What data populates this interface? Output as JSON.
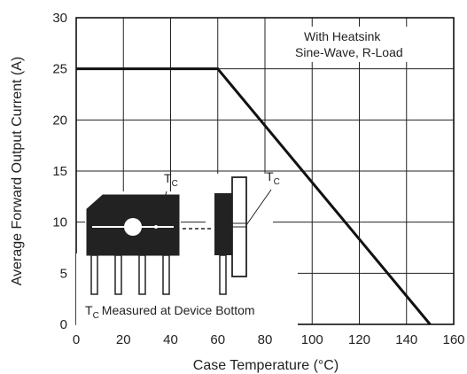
{
  "chart_data": {
    "type": "line",
    "xlabel": "Case Temperature (°C)",
    "ylabel": "Average Forward Output Current (A)",
    "xlim": [
      0,
      160
    ],
    "ylim": [
      0,
      30
    ],
    "xticks": [
      0,
      20,
      40,
      60,
      80,
      100,
      120,
      140,
      160
    ],
    "yticks": [
      0,
      5,
      10,
      15,
      20,
      25,
      30
    ],
    "grid": true,
    "series": [
      {
        "x": [
          0,
          60,
          150
        ],
        "y": [
          25,
          25,
          0
        ]
      }
    ],
    "annotations": {
      "condition_line1": "With Heatsink",
      "condition_line2": "Sine-Wave, R-Load",
      "tc_symbol": "T",
      "tc_subscript": "C",
      "tc_note": "Measured at Device Bottom"
    }
  }
}
